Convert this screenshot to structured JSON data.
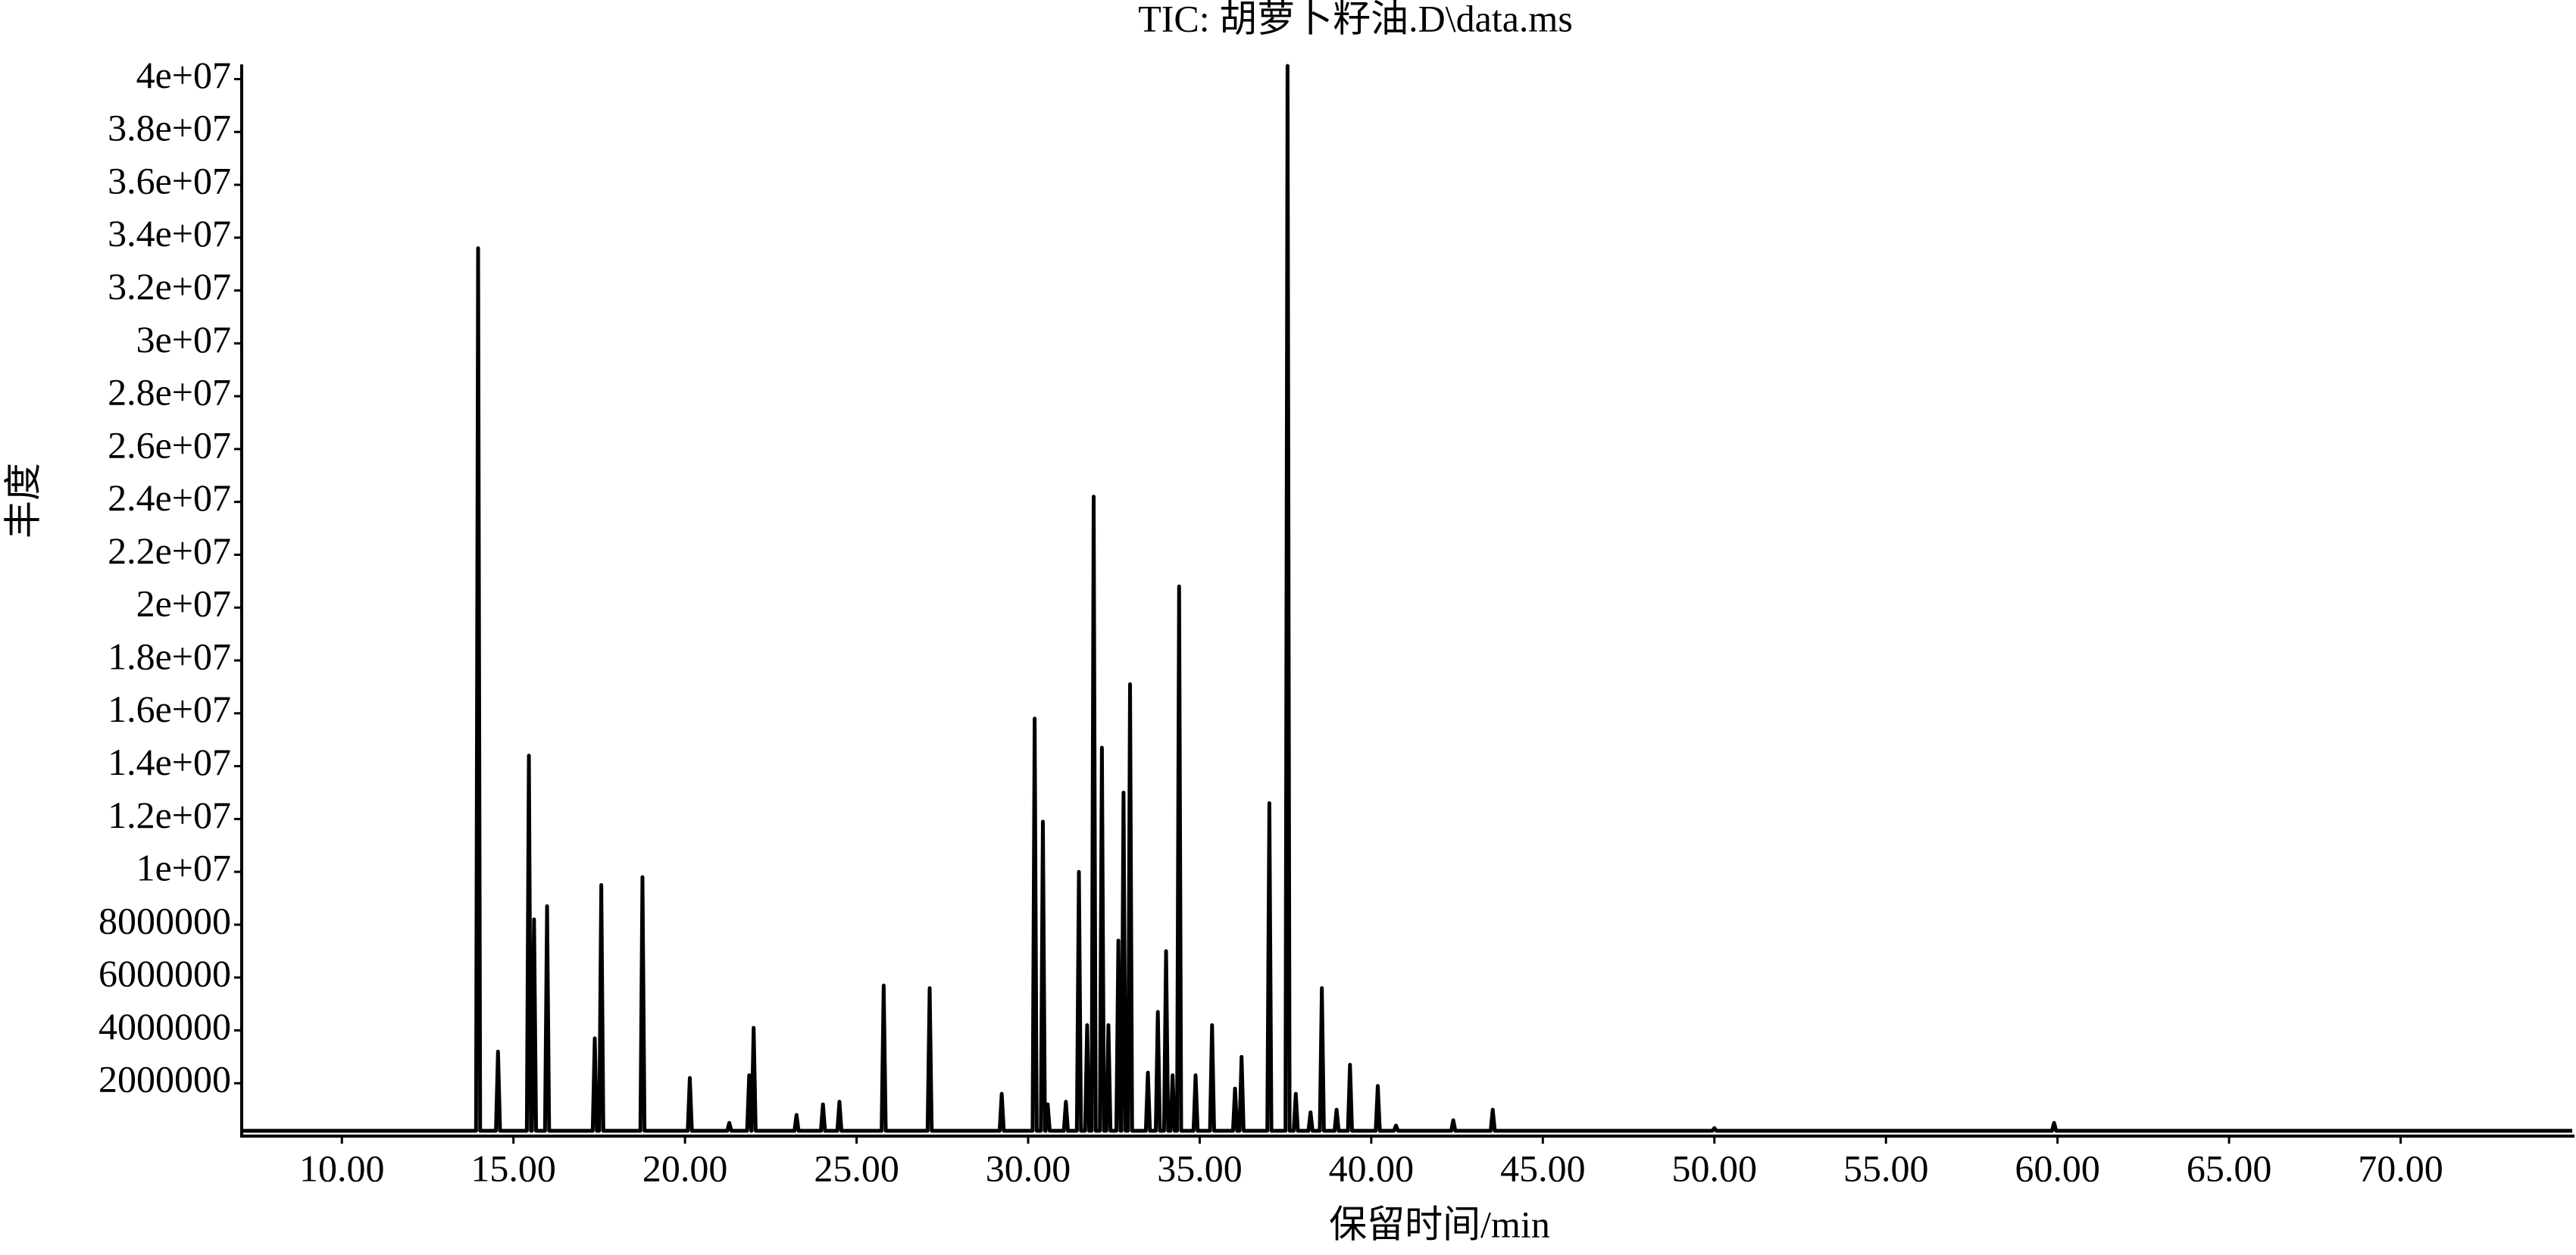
{
  "chart_data": {
    "type": "line",
    "title": "TIC: 胡萝卜籽油.D\\data.ms",
    "xlabel": "保留时间/min",
    "ylabel": "丰度",
    "color": "#000000",
    "x": [
      7.08,
      13.91,
      13.97,
      14.03,
      14.49,
      14.55,
      14.61,
      15.39,
      15.45,
      15.51,
      15.54,
      15.6,
      15.66,
      15.92,
      15.98,
      16.04,
      17.31,
      17.37,
      17.43,
      17.5,
      17.56,
      17.62,
      18.7,
      18.76,
      18.82,
      20.08,
      20.14,
      20.2,
      21.23,
      21.29,
      21.35,
      21.81,
      21.87,
      21.93,
      21.94,
      22.0,
      22.06,
      23.19,
      23.25,
      23.31,
      23.96,
      24.02,
      24.08,
      24.44,
      24.5,
      24.56,
      25.73,
      25.79,
      25.85,
      27.07,
      27.13,
      27.19,
      29.17,
      29.23,
      29.29,
      30.13,
      30.19,
      30.25,
      30.37,
      30.43,
      30.49,
      30.51,
      30.57,
      30.63,
      31.04,
      31.1,
      31.16,
      31.42,
      31.48,
      31.54,
      31.66,
      31.72,
      31.78,
      31.85,
      31.91,
      31.97,
      32.09,
      32.15,
      32.21,
      32.28,
      32.34,
      32.4,
      32.57,
      32.63,
      32.69,
      32.72,
      32.78,
      32.84,
      32.91,
      32.97,
      33.03,
      33.43,
      33.49,
      33.55,
      33.72,
      33.78,
      33.84,
      33.96,
      34.02,
      34.08,
      34.15,
      34.21,
      34.27,
      34.34,
      34.4,
      34.46,
      34.82,
      34.88,
      34.94,
      35.3,
      35.36,
      35.42,
      35.97,
      36.03,
      36.09,
      36.16,
      36.22,
      36.28,
      36.97,
      37.03,
      37.09,
      37.5,
      37.56,
      37.62,
      37.74,
      37.8,
      37.86,
      38.17,
      38.23,
      38.29,
      38.5,
      38.56,
      38.62,
      38.93,
      38.99,
      39.05,
      39.32,
      39.38,
      39.44,
      40.13,
      40.19,
      40.25,
      40.66,
      40.72,
      40.78,
      42.33,
      42.39,
      42.45,
      43.48,
      43.54,
      43.6,
      49.94,
      50.0,
      50.06,
      59.84,
      59.9,
      59.96,
      75
    ],
    "values": [
      200000,
      200000,
      33600000,
      200000,
      200000,
      3200000,
      200000,
      200000,
      14400000,
      200000,
      200000,
      8200000,
      200000,
      200000,
      8700000,
      200000,
      200000,
      3700000,
      200000,
      200000,
      9500000,
      200000,
      200000,
      9800000,
      200000,
      200000,
      2200000,
      200000,
      200000,
      500000,
      200000,
      200000,
      2300000,
      200000,
      200000,
      4100000,
      200000,
      200000,
      800000,
      200000,
      200000,
      1200000,
      200000,
      200000,
      1300000,
      200000,
      200000,
      5700000,
      200000,
      200000,
      5600000,
      200000,
      200000,
      1600000,
      200000,
      200000,
      15800000,
      200000,
      200000,
      11900000,
      200000,
      200000,
      1200000,
      200000,
      200000,
      1300000,
      200000,
      200000,
      10000000,
      200000,
      200000,
      4200000,
      200000,
      200000,
      24200000,
      200000,
      200000,
      14700000,
      200000,
      200000,
      4200000,
      200000,
      200000,
      7400000,
      200000,
      200000,
      13000000,
      200000,
      200000,
      17100000,
      200000,
      200000,
      2400000,
      200000,
      200000,
      4700000,
      200000,
      200000,
      7000000,
      200000,
      200000,
      2300000,
      200000,
      200000,
      20800000,
      200000,
      200000,
      2300000,
      200000,
      200000,
      4200000,
      200000,
      200000,
      1800000,
      200000,
      200000,
      3000000,
      200000,
      200000,
      12600000,
      200000,
      200000,
      40500000,
      200000,
      200000,
      1600000,
      200000,
      200000,
      900000,
      200000,
      200000,
      5600000,
      200000,
      200000,
      1000000,
      200000,
      200000,
      2700000,
      200000,
      200000,
      1900000,
      200000,
      200000,
      400000,
      200000,
      200000,
      600000,
      200000,
      200000,
      1000000,
      200000,
      200000,
      300000,
      200000,
      200000,
      500000,
      200000,
      200000
    ],
    "xlim": [
      7.08,
      75
    ],
    "ylim": [
      0,
      40500000
    ],
    "xticks": [
      {
        "value": 10,
        "label": "10.00"
      },
      {
        "value": 15,
        "label": "15.00"
      },
      {
        "value": 20,
        "label": "20.00"
      },
      {
        "value": 25,
        "label": "25.00"
      },
      {
        "value": 30,
        "label": "30.00"
      },
      {
        "value": 35,
        "label": "35.00"
      },
      {
        "value": 40,
        "label": "40.00"
      },
      {
        "value": 45,
        "label": "45.00"
      },
      {
        "value": 50,
        "label": "50.00"
      },
      {
        "value": 55,
        "label": "55.00"
      },
      {
        "value": 60,
        "label": "60.00"
      },
      {
        "value": 65,
        "label": "65.00"
      },
      {
        "value": 70,
        "label": "70.00"
      }
    ],
    "yticks": [
      2000000,
      4000000,
      6000000,
      8000000,
      {
        "value": 10000000,
        "label": "1e+07"
      },
      {
        "value": 12000000,
        "label": "1.2e+07"
      },
      {
        "value": 14000000,
        "label": "1.4e+07"
      },
      {
        "value": 16000000,
        "label": "1.6e+07"
      },
      {
        "value": 18000000,
        "label": "1.8e+07"
      },
      {
        "value": 20000000,
        "label": "2e+07"
      },
      {
        "value": 22000000,
        "label": "2.2e+07"
      },
      {
        "value": 24000000,
        "label": "2.4e+07"
      },
      {
        "value": 26000000,
        "label": "2.6e+07"
      },
      {
        "value": 28000000,
        "label": "2.8e+07"
      },
      {
        "value": 30000000,
        "label": "3e+07"
      },
      {
        "value": 32000000,
        "label": "3.2e+07"
      },
      {
        "value": 34000000,
        "label": "3.4e+07"
      },
      {
        "value": 36000000,
        "label": "3.6e+07"
      },
      {
        "value": 38000000,
        "label": "3.8e+07"
      },
      {
        "value": 40000000,
        "label": "4e+07"
      }
    ]
  }
}
